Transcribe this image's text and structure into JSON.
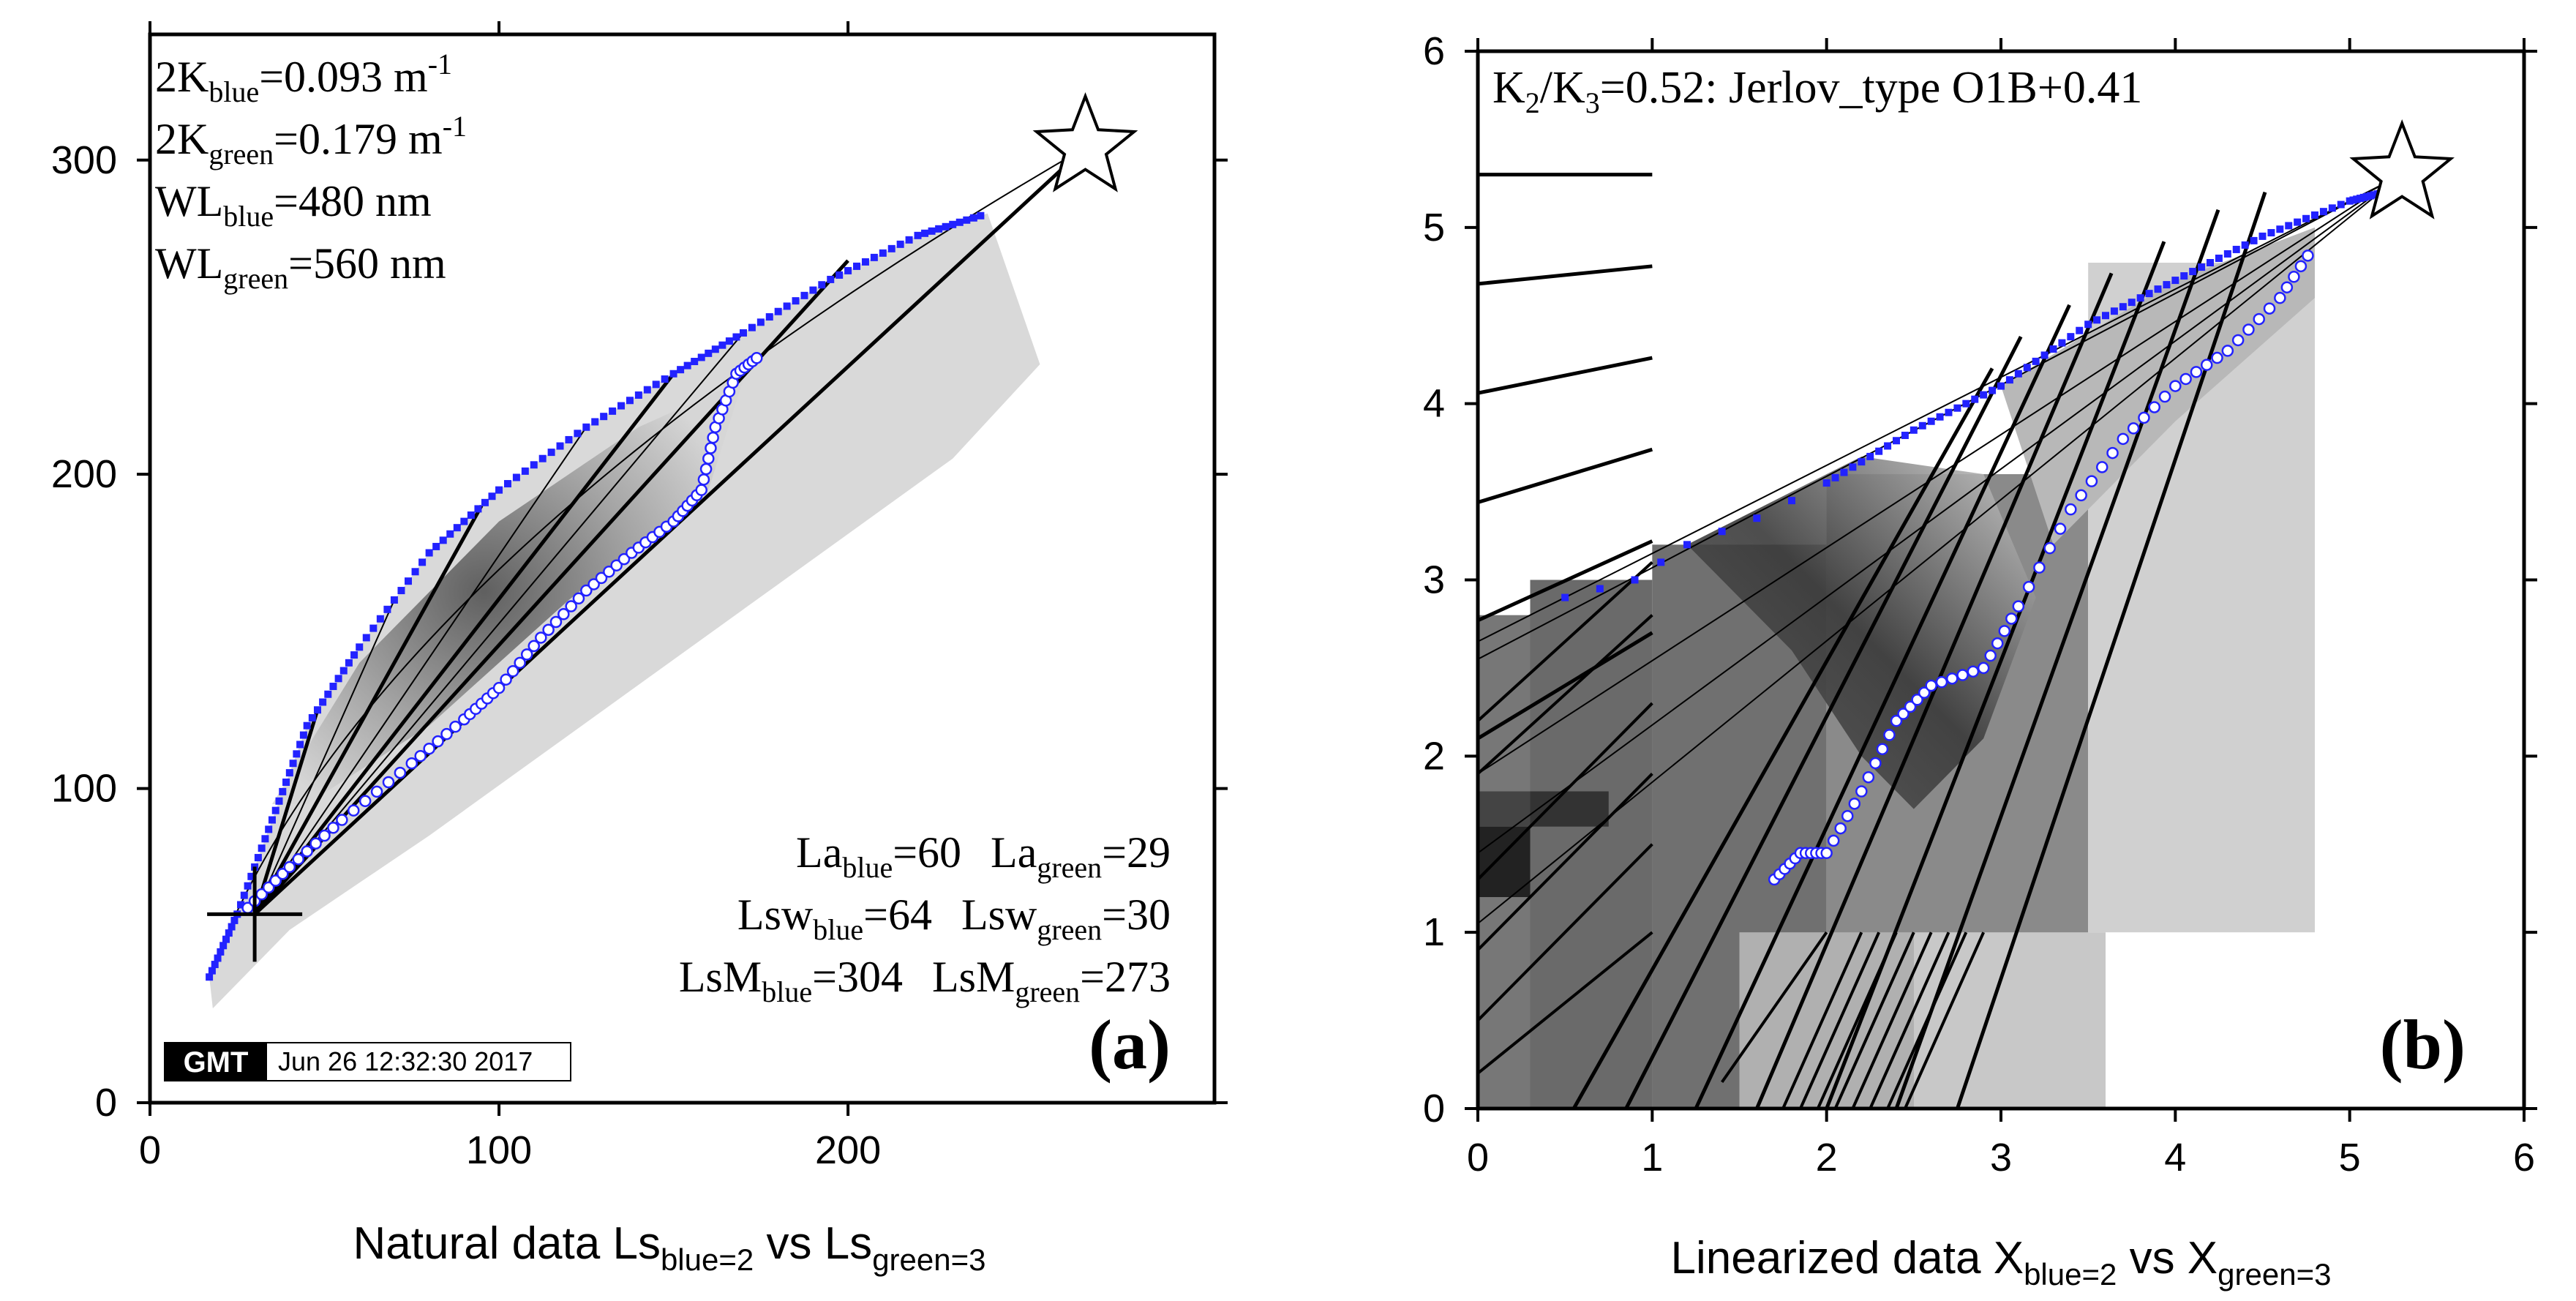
{
  "chart_data": [
    {
      "id": "a",
      "type": "scatter",
      "panel_label": "(a)",
      "xlabel": {
        "main": "Natural data Ls",
        "sub1": "blue=2",
        "mid": " vs Ls",
        "sub2": "green=3"
      },
      "xlim": [
        0,
        305
      ],
      "ylim": [
        0,
        340
      ],
      "xticks": [
        0,
        100,
        200
      ],
      "yticks": [
        0,
        100,
        200,
        300
      ],
      "params": [
        {
          "main": "2K",
          "sub": "blue",
          "rest": "=0.093 m",
          "sup": "-1"
        },
        {
          "main": "2K",
          "sub": "green",
          "rest": "=0.179 m",
          "sup": "-1"
        },
        {
          "main": "WL",
          "sub": "blue",
          "rest": "=480 nm",
          "sup": ""
        },
        {
          "main": "WL",
          "sub": "green",
          "rest": "=560 nm",
          "sup": ""
        }
      ],
      "radiance": [
        [
          {
            "main": "La",
            "sub": "blue",
            "rest": "=60"
          },
          {
            "main": "La",
            "sub": "green",
            "rest": "=29"
          }
        ],
        [
          {
            "main": "Lsw",
            "sub": "blue",
            "rest": "=64"
          },
          {
            "main": "Lsw",
            "sub": "green",
            "rest": "=30"
          }
        ],
        [
          {
            "main": "LsM",
            "sub": "blue",
            "rest": "=304"
          },
          {
            "main": "LsM",
            "sub": "green",
            "rest": "=273"
          }
        ]
      ],
      "cross": [
        30,
        60
      ],
      "star": [
        268,
        304
      ],
      "upper_envelope": [
        [
          17,
          40
        ],
        [
          25,
          60
        ],
        [
          35,
          90
        ],
        [
          45,
          120
        ],
        [
          60,
          145
        ],
        [
          80,
          175
        ],
        [
          100,
          195
        ],
        [
          125,
          215
        ],
        [
          150,
          232
        ],
        [
          170,
          245
        ],
        [
          195,
          262
        ],
        [
          220,
          276
        ],
        [
          240,
          283
        ]
      ],
      "lower_points": [
        [
          28,
          62
        ],
        [
          40,
          75
        ],
        [
          55,
          90
        ],
        [
          75,
          108
        ],
        [
          90,
          122
        ],
        [
          100,
          132
        ],
        [
          112,
          148
        ],
        [
          125,
          163
        ],
        [
          138,
          175
        ],
        [
          150,
          185
        ],
        [
          158,
          195
        ],
        [
          162,
          215
        ],
        [
          168,
          232
        ],
        [
          175,
          238
        ]
      ],
      "fan_endpoints": [
        [
          48,
          125
        ],
        [
          70,
          160
        ],
        [
          95,
          190
        ],
        [
          125,
          215
        ],
        [
          150,
          232
        ],
        [
          170,
          245
        ],
        [
          200,
          268
        ]
      ],
      "gmt_stamp": {
        "logo": "GMT",
        "time": "Jun 26 12:32:30 2017"
      }
    },
    {
      "id": "b",
      "type": "scatter",
      "panel_label": "(b)",
      "title": {
        "a": "K",
        "s1": "2",
        "b": "/K",
        "s2": "3",
        "c": "=0.52: Jerlov_type O1B+0.41"
      },
      "xlabel": {
        "main": "Linearized data X",
        "sub1": "blue=2",
        "mid": " vs X",
        "sub2": "green=3"
      },
      "xlim": [
        0,
        6
      ],
      "ylim": [
        0,
        6
      ],
      "xticks": [
        0,
        1,
        2,
        3,
        4,
        5,
        6
      ],
      "yticks": [
        0,
        1,
        2,
        3,
        4,
        5,
        6
      ],
      "upper_points": [
        [
          0.5,
          2.9
        ],
        [
          0.9,
          3.0
        ],
        [
          1.2,
          3.2
        ],
        [
          1.6,
          3.35
        ],
        [
          2.0,
          3.55
        ],
        [
          2.5,
          3.85
        ],
        [
          3.0,
          4.1
        ],
        [
          3.5,
          4.45
        ],
        [
          4.0,
          4.7
        ],
        [
          4.5,
          4.95
        ],
        [
          5.0,
          5.15
        ],
        [
          5.2,
          5.2
        ]
      ],
      "lower_points": [
        [
          1.7,
          1.3
        ],
        [
          1.85,
          1.45
        ],
        [
          2.0,
          1.45
        ],
        [
          2.2,
          1.8
        ],
        [
          2.4,
          2.2
        ],
        [
          2.6,
          2.4
        ],
        [
          2.9,
          2.5
        ],
        [
          3.1,
          2.85
        ],
        [
          3.4,
          3.4
        ],
        [
          3.7,
          3.8
        ],
        [
          4.0,
          4.1
        ],
        [
          4.3,
          4.3
        ],
        [
          4.6,
          4.6
        ],
        [
          4.8,
          4.9
        ]
      ],
      "star": [
        5.3,
        5.3
      ],
      "legend_slopes": [
        0.0,
        0.1,
        0.2,
        0.3,
        0.45,
        0.6
      ]
    }
  ]
}
